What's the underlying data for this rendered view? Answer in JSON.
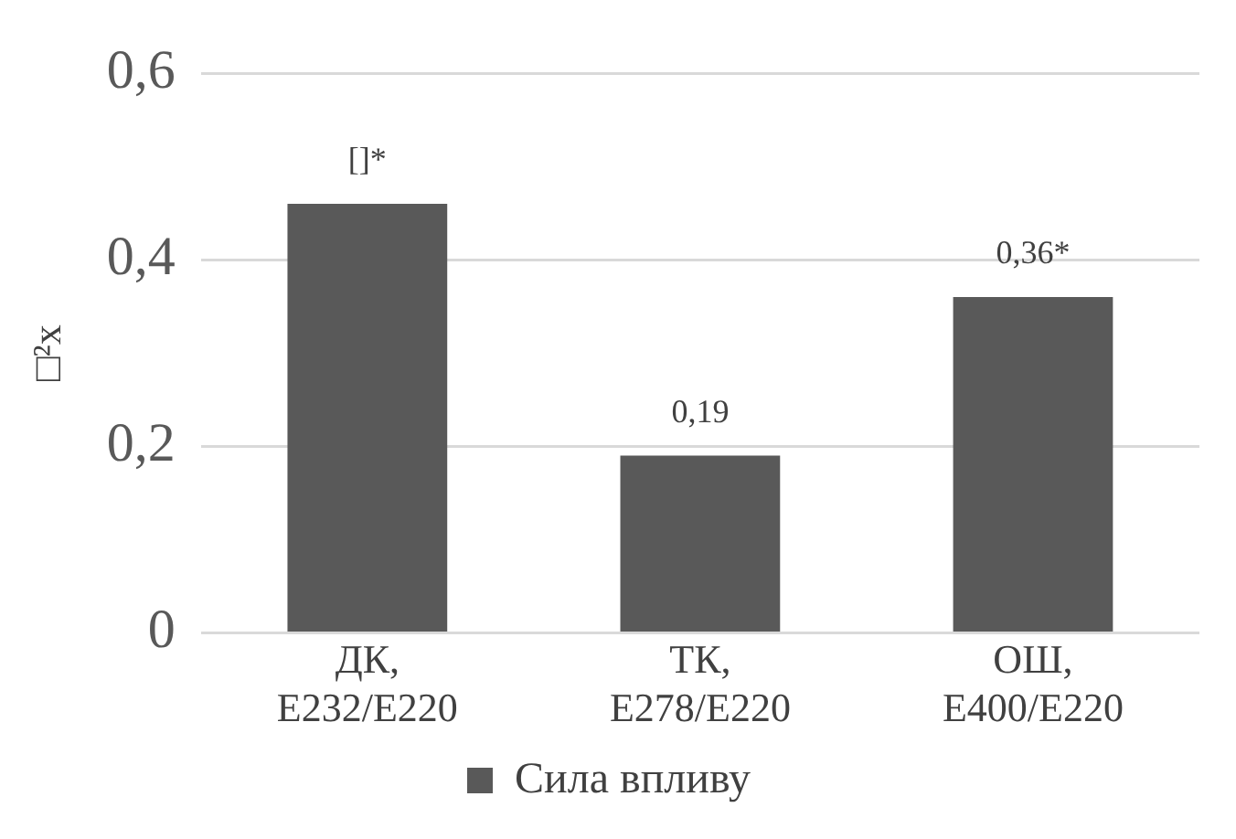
{
  "chart_data": {
    "type": "bar",
    "ylabel": "□²x",
    "categories": [
      "ДК, E232/E220",
      "ТК, E278/E220",
      "ОШ, E400/E220"
    ],
    "series": [
      {
        "name": "Сила впливу",
        "color": "#595959",
        "values": [
          0.46,
          0.19,
          0.36
        ],
        "value_labels": [
          "[]*",
          "0,19",
          "0,36*"
        ]
      }
    ],
    "ylim": [
      0,
      0.6
    ],
    "yticks": [
      0,
      {
        "value": 0.2,
        "label": "0,2"
      },
      {
        "value": 0.4,
        "label": "0,4"
      },
      {
        "value": 0.6,
        "label": "0,6"
      }
    ],
    "grid": "y",
    "legend": "bottom"
  }
}
